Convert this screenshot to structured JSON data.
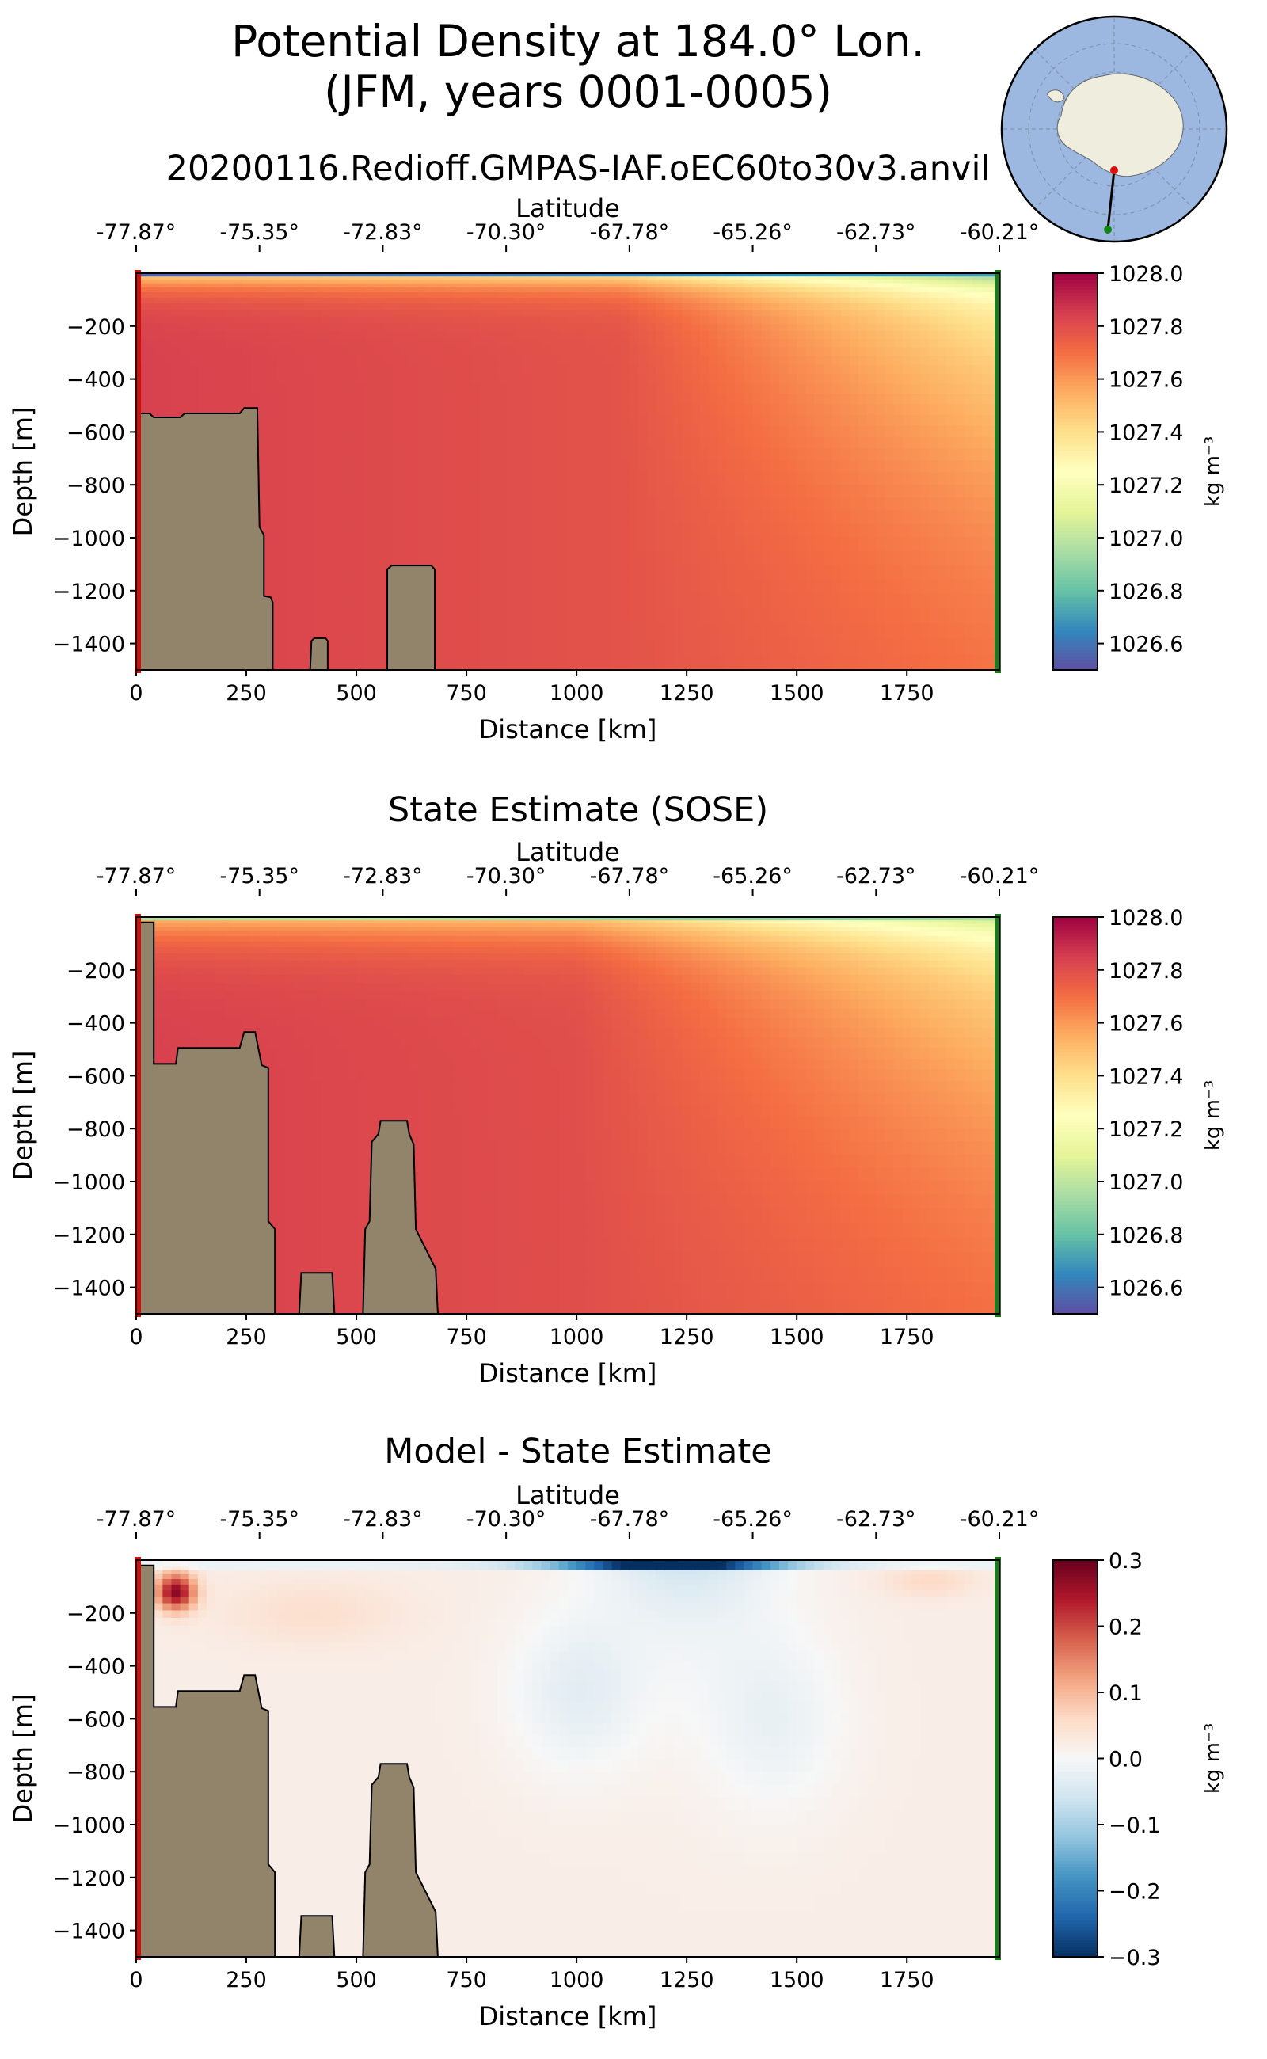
{
  "figure": {
    "title_line1": "Potential Density at 184.0° Lon.",
    "title_line2": "(JFM, years 0001-0005)",
    "subtitle": "20200116.Redioff.GMPAS-IAF.oEC60to30v3.anvil"
  },
  "colors": {
    "bathymetry": "#91846a",
    "start_marker": "#cc1111",
    "end_marker": "#1a7a1a",
    "ocean": "#9cb8e0",
    "land": "#efedde"
  },
  "inset_map": {
    "description_icon": "antarctic-polar-map-icon"
  },
  "chart_data": [
    {
      "type": "heatmap",
      "panel_title": "",
      "xlabel": "Distance [km]",
      "ylabel": "Depth [m]",
      "top_xlabel": "Latitude",
      "xlim": [
        0,
        1960
      ],
      "ylim": [
        -1500,
        0
      ],
      "xticks": [
        0,
        250,
        500,
        750,
        1000,
        1250,
        1500,
        1750
      ],
      "xtick_labels": [
        "0",
        "250",
        "500",
        "750",
        "1000",
        "1250",
        "1500",
        "1750"
      ],
      "yticks": [
        -200,
        -400,
        -600,
        -800,
        -1000,
        -1200,
        -1400
      ],
      "ytick_labels": [
        "−200",
        "−400",
        "−600",
        "−800",
        "−1000",
        "−1200",
        "−1400"
      ],
      "lat_labels": [
        "-77.87°",
        "-75.35°",
        "-72.83°",
        "-70.30°",
        "-67.78°",
        "-65.26°",
        "-62.73°",
        "-60.21°"
      ],
      "colormap": "Spectral_r",
      "colorbar": {
        "label": "kg m⁻³",
        "range": [
          1026.5,
          1028.0
        ],
        "ticks": [
          1028.0,
          1027.8,
          1027.6,
          1027.4,
          1027.2,
          1027.0,
          1026.8,
          1026.6
        ],
        "tick_labels": [
          "1028.0",
          "1027.8",
          "1027.6",
          "1027.4",
          "1027.2",
          "1027.0",
          "1026.8",
          "1026.6"
        ]
      },
      "bathymetry": [
        [
          0,
          -1500
        ],
        [
          0,
          -530
        ],
        [
          30,
          -530
        ],
        [
          40,
          -545
        ],
        [
          100,
          -545
        ],
        [
          110,
          -530
        ],
        [
          235,
          -530
        ],
        [
          245,
          -510
        ],
        [
          275,
          -510
        ],
        [
          280,
          -960
        ],
        [
          290,
          -990
        ],
        [
          290,
          -1220
        ],
        [
          305,
          -1225
        ],
        [
          310,
          -1245
        ],
        [
          310,
          -1500
        ],
        [
          395,
          -1500
        ],
        [
          398,
          -1390
        ],
        [
          405,
          -1380
        ],
        [
          430,
          -1380
        ],
        [
          435,
          -1390
        ],
        [
          435,
          -1500
        ],
        [
          570,
          -1500
        ],
        [
          570,
          -1120
        ],
        [
          580,
          -1105
        ],
        [
          670,
          -1105
        ],
        [
          678,
          -1120
        ],
        [
          678,
          -1500
        ]
      ]
    },
    {
      "type": "heatmap",
      "panel_title": "State Estimate (SOSE)",
      "xlabel": "Distance [km]",
      "ylabel": "Depth [m]",
      "top_xlabel": "Latitude",
      "xlim": [
        0,
        1960
      ],
      "ylim": [
        -1500,
        0
      ],
      "xticks": [
        0,
        250,
        500,
        750,
        1000,
        1250,
        1500,
        1750
      ],
      "xtick_labels": [
        "0",
        "250",
        "500",
        "750",
        "1000",
        "1250",
        "1500",
        "1750"
      ],
      "yticks": [
        -200,
        -400,
        -600,
        -800,
        -1000,
        -1200,
        -1400
      ],
      "ytick_labels": [
        "−200",
        "−400",
        "−600",
        "−800",
        "−1000",
        "−1200",
        "−1400"
      ],
      "lat_labels": [
        "-77.87°",
        "-75.35°",
        "-72.83°",
        "-70.30°",
        "-67.78°",
        "-65.26°",
        "-62.73°",
        "-60.21°"
      ],
      "colormap": "Spectral_r",
      "colorbar": {
        "label": "kg m⁻³",
        "range": [
          1026.5,
          1028.0
        ],
        "ticks": [
          1028.0,
          1027.8,
          1027.6,
          1027.4,
          1027.2,
          1027.0,
          1026.8,
          1026.6
        ],
        "tick_labels": [
          "1028.0",
          "1027.8",
          "1027.6",
          "1027.4",
          "1027.2",
          "1027.0",
          "1026.8",
          "1026.6"
        ]
      },
      "bathymetry": [
        [
          0,
          -1500
        ],
        [
          0,
          -20
        ],
        [
          40,
          -20
        ],
        [
          40,
          -555
        ],
        [
          90,
          -555
        ],
        [
          95,
          -495
        ],
        [
          235,
          -495
        ],
        [
          245,
          -435
        ],
        [
          270,
          -435
        ],
        [
          285,
          -560
        ],
        [
          300,
          -570
        ],
        [
          300,
          -1150
        ],
        [
          315,
          -1180
        ],
        [
          315,
          -1500
        ],
        [
          370,
          -1500
        ],
        [
          375,
          -1345
        ],
        [
          445,
          -1345
        ],
        [
          450,
          -1500
        ],
        [
          515,
          -1500
        ],
        [
          520,
          -1180
        ],
        [
          530,
          -1150
        ],
        [
          535,
          -850
        ],
        [
          550,
          -820
        ],
        [
          555,
          -770
        ],
        [
          615,
          -770
        ],
        [
          620,
          -820
        ],
        [
          630,
          -860
        ],
        [
          635,
          -1180
        ],
        [
          680,
          -1330
        ],
        [
          685,
          -1500
        ]
      ]
    },
    {
      "type": "heatmap",
      "panel_title": "Model - State Estimate",
      "xlabel": "Distance [km]",
      "ylabel": "Depth [m]",
      "top_xlabel": "Latitude",
      "xlim": [
        0,
        1960
      ],
      "ylim": [
        -1500,
        0
      ],
      "xticks": [
        0,
        250,
        500,
        750,
        1000,
        1250,
        1500,
        1750
      ],
      "xtick_labels": [
        "0",
        "250",
        "500",
        "750",
        "1000",
        "1250",
        "1500",
        "1750"
      ],
      "yticks": [
        -200,
        -400,
        -600,
        -800,
        -1000,
        -1200,
        -1400
      ],
      "ytick_labels": [
        "−200",
        "−400",
        "−600",
        "−800",
        "−1000",
        "−1200",
        "−1400"
      ],
      "lat_labels": [
        "-77.87°",
        "-75.35°",
        "-72.83°",
        "-70.30°",
        "-67.78°",
        "-65.26°",
        "-62.73°",
        "-60.21°"
      ],
      "colormap": "RdBu_r",
      "colorbar": {
        "label": "kg m⁻³",
        "range": [
          -0.3,
          0.3
        ],
        "ticks": [
          0.3,
          0.2,
          0.1,
          0.0,
          -0.1,
          -0.2,
          -0.3
        ],
        "tick_labels": [
          "0.3",
          "0.2",
          "0.1",
          "0.0",
          "−0.1",
          "−0.2",
          "−0.3"
        ]
      },
      "bathymetry": [
        [
          0,
          -1500
        ],
        [
          0,
          -20
        ],
        [
          40,
          -20
        ],
        [
          40,
          -555
        ],
        [
          90,
          -555
        ],
        [
          95,
          -495
        ],
        [
          235,
          -495
        ],
        [
          245,
          -435
        ],
        [
          270,
          -435
        ],
        [
          285,
          -560
        ],
        [
          300,
          -570
        ],
        [
          300,
          -1150
        ],
        [
          315,
          -1180
        ],
        [
          315,
          -1500
        ],
        [
          370,
          -1500
        ],
        [
          375,
          -1345
        ],
        [
          445,
          -1345
        ],
        [
          450,
          -1500
        ],
        [
          515,
          -1500
        ],
        [
          520,
          -1180
        ],
        [
          530,
          -1150
        ],
        [
          535,
          -850
        ],
        [
          550,
          -820
        ],
        [
          555,
          -770
        ],
        [
          615,
          -770
        ],
        [
          620,
          -820
        ],
        [
          630,
          -860
        ],
        [
          635,
          -1180
        ],
        [
          680,
          -1330
        ],
        [
          685,
          -1500
        ]
      ]
    }
  ]
}
